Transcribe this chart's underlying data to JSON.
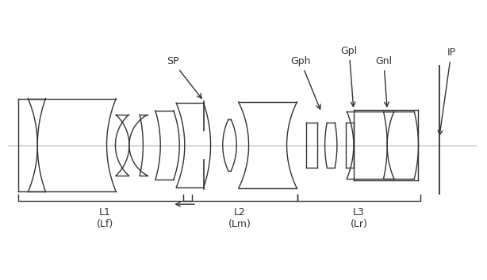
{
  "fig_width": 6.14,
  "fig_height": 3.54,
  "dpi": 100,
  "bg_color": "#ffffff",
  "line_color": "#333333",
  "lw": 1.0,
  "xlim": [
    -0.5,
    13.5
  ],
  "ylim": [
    -3.2,
    3.5
  ],
  "optical_axis_y": 0.0
}
